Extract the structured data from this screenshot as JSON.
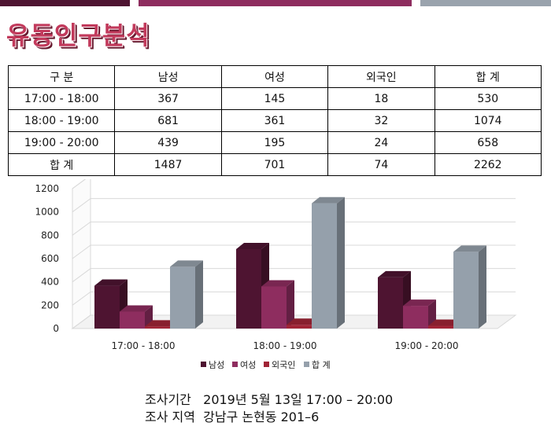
{
  "title": "유동인구분석",
  "table": {
    "header": [
      "구    분",
      "남성",
      "여성",
      "외국인",
      "합     계"
    ],
    "rows": [
      [
        "17:00 - 18:00",
        "367",
        "145",
        "18",
        "530"
      ],
      [
        "18:00 - 19:00",
        "681",
        "361",
        "32",
        "1074"
      ],
      [
        "19:00 - 20:00",
        "439",
        "195",
        "24",
        "658"
      ],
      [
        "합     계",
        "1487",
        "701",
        "74",
        "2262"
      ]
    ]
  },
  "chart_data": {
    "type": "bar",
    "categories": [
      "17:00 - 18:00",
      "18:00 - 19:00",
      "19:00 - 20:00"
    ],
    "series": [
      {
        "name": "남성",
        "values": [
          367,
          681,
          439
        ],
        "color": "#4e1431"
      },
      {
        "name": "여성",
        "values": [
          145,
          361,
          195
        ],
        "color": "#8e2d5f"
      },
      {
        "name": "외국인",
        "values": [
          18,
          32,
          24
        ],
        "color": "#a02436"
      },
      {
        "name": "합     계",
        "values": [
          530,
          1074,
          658
        ],
        "color": "#95a0ab"
      }
    ],
    "yticks": [
      0,
      200,
      400,
      600,
      800,
      1000,
      1200
    ],
    "ylim": [
      0,
      1200
    ],
    "grid": true,
    "legend": "bottom",
    "style": "3d"
  },
  "footer": {
    "line1": "조사기간   2019년 5월 13일 17:00 – 20:00",
    "line2": "조사 지역  강남구 논현동 201–6"
  },
  "colors": {
    "topbar_left": "#4e1431",
    "topbar_mid": "#8e2d5f",
    "topbar_right": "#9aa3ad",
    "title": "#c23a5c"
  }
}
